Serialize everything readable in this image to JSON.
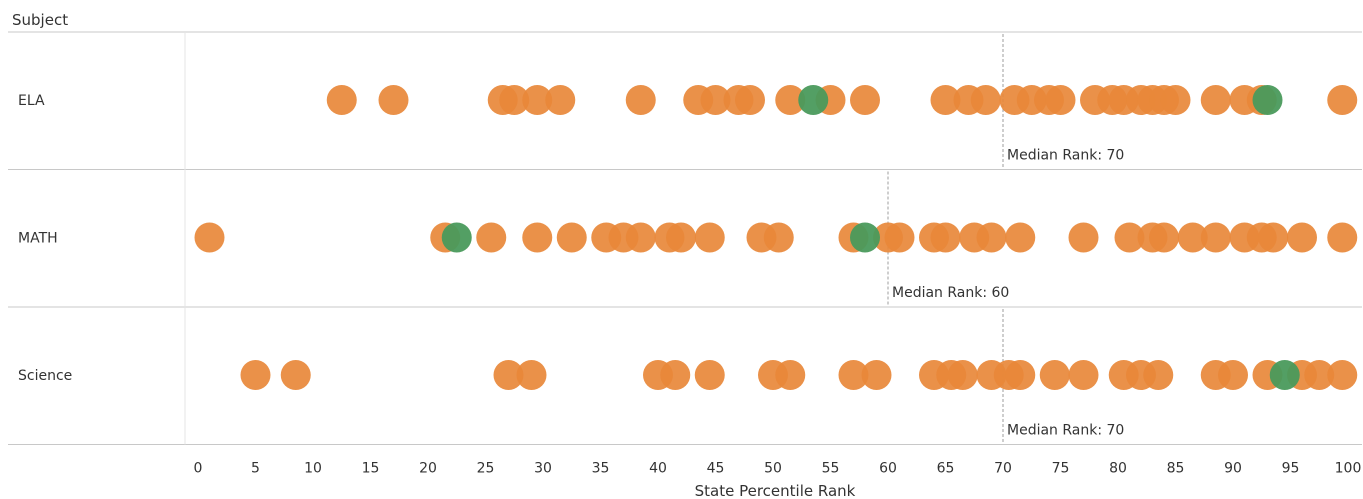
{
  "chart_data": {
    "type": "scatter",
    "title": "",
    "row_header": "Subject",
    "xlabel": "State Percentile Rank",
    "xlim": [
      0,
      100
    ],
    "x_ticks": [
      "0",
      "5",
      "10",
      "15",
      "20",
      "25",
      "30",
      "35",
      "40",
      "45",
      "50",
      "55",
      "60",
      "65",
      "70",
      "75",
      "80",
      "85",
      "90",
      "95",
      "100"
    ],
    "grid": false,
    "colors": {
      "default": "#E8883A",
      "highlight": "#4A9A5C",
      "median_line": "#9E9E9E",
      "row_divider": "#C8C8C8"
    },
    "median_label_prefix": "Median Rank: ",
    "rows": [
      {
        "name": "ELA",
        "median": 70,
        "median_label": "Median Rank: 70",
        "points": [
          12.5,
          17,
          26.5,
          27.5,
          29.5,
          31.5,
          38.5,
          43.5,
          45,
          47,
          48,
          51.5,
          55,
          58,
          65,
          67,
          68.5,
          71,
          72.5,
          74,
          75,
          78,
          79.5,
          80.5,
          82,
          83,
          84,
          85,
          88.5,
          91,
          92.5,
          99.5
        ],
        "highlights": [
          53.5,
          93
        ]
      },
      {
        "name": "MATH",
        "median": 60,
        "median_label": "Median Rank: 60",
        "points": [
          1,
          21.5,
          25.5,
          29.5,
          32.5,
          35.5,
          37,
          38.5,
          41,
          42,
          44.5,
          49,
          50.5,
          57,
          60,
          61,
          64,
          65,
          67.5,
          69,
          71.5,
          77,
          81,
          83,
          84,
          86.5,
          88.5,
          91,
          92.5,
          93.5,
          96,
          99.5
        ],
        "highlights": [
          22.5,
          58
        ]
      },
      {
        "name": "Science",
        "median": 70,
        "median_label": "Median Rank: 70",
        "points": [
          5,
          8.5,
          27,
          29,
          40,
          41.5,
          44.5,
          50,
          51.5,
          57,
          59,
          64,
          65.5,
          66.5,
          69,
          70.5,
          71.5,
          74.5,
          77,
          80.5,
          82,
          83.5,
          88.5,
          90,
          93,
          96,
          97.5,
          99.5
        ],
        "highlights": [
          94.5
        ]
      }
    ]
  }
}
